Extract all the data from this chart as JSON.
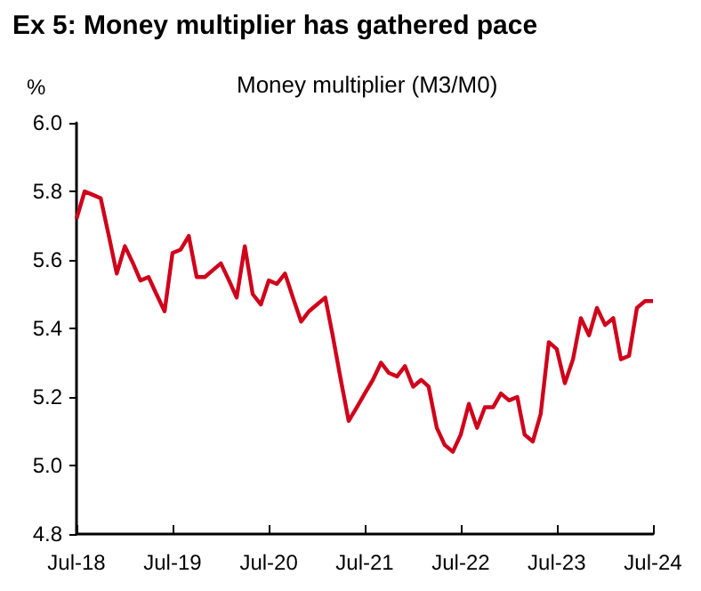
{
  "chart_data": {
    "type": "line",
    "title": "Ex 5: Money multiplier has gathered pace",
    "subtitle": "Money multiplier (M3/M0)",
    "ylabel": "%",
    "x": [
      "2018-07",
      "2018-08",
      "2018-09",
      "2018-10",
      "2018-11",
      "2018-12",
      "2019-01",
      "2019-02",
      "2019-03",
      "2019-04",
      "2019-05",
      "2019-06",
      "2019-07",
      "2019-08",
      "2019-09",
      "2019-10",
      "2019-11",
      "2019-12",
      "2020-01",
      "2020-02",
      "2020-03",
      "2020-04",
      "2020-05",
      "2020-06",
      "2020-07",
      "2020-08",
      "2020-09",
      "2020-10",
      "2020-11",
      "2020-12",
      "2021-01",
      "2021-02",
      "2021-03",
      "2021-04",
      "2021-05",
      "2021-06",
      "2021-07",
      "2021-08",
      "2021-09",
      "2021-10",
      "2021-11",
      "2021-12",
      "2022-01",
      "2022-02",
      "2022-03",
      "2022-04",
      "2022-05",
      "2022-06",
      "2022-07",
      "2022-08",
      "2022-09",
      "2022-10",
      "2022-11",
      "2022-12",
      "2023-01",
      "2023-02",
      "2023-03",
      "2023-04",
      "2023-05",
      "2023-06",
      "2023-07",
      "2023-08",
      "2023-09",
      "2023-10",
      "2023-11",
      "2023-12",
      "2024-01",
      "2024-02",
      "2024-03",
      "2024-04",
      "2024-05",
      "2024-06",
      "2024-07"
    ],
    "series": [
      {
        "color": "#d0021b",
        "values": [
          5.72,
          5.8,
          5.79,
          5.78,
          5.67,
          5.56,
          5.64,
          5.59,
          5.54,
          5.55,
          5.5,
          5.45,
          5.62,
          5.63,
          5.67,
          5.55,
          5.55,
          5.57,
          5.59,
          5.54,
          5.49,
          5.64,
          5.5,
          5.47,
          5.54,
          5.53,
          5.56,
          5.49,
          5.42,
          5.45,
          5.47,
          5.49,
          5.38,
          5.25,
          5.13,
          5.17,
          5.21,
          5.25,
          5.3,
          5.27,
          5.26,
          5.29,
          5.23,
          5.25,
          5.23,
          5.11,
          5.06,
          5.04,
          5.09,
          5.18,
          5.11,
          5.17,
          5.17,
          5.21,
          5.19,
          5.2,
          5.09,
          5.07,
          5.15,
          5.36,
          5.34,
          5.24,
          5.31,
          5.43,
          5.38,
          5.46,
          5.41,
          5.43,
          5.31,
          5.32,
          5.46,
          5.48,
          5.48
        ]
      }
    ],
    "xlim": [
      "2018-07",
      "2024-07"
    ],
    "xticks": [
      {
        "value": "2018-07",
        "label": "Jul-18"
      },
      {
        "value": "2019-07",
        "label": "Jul-19"
      },
      {
        "value": "2020-07",
        "label": "Jul-20"
      },
      {
        "value": "2021-07",
        "label": "Jul-21"
      },
      {
        "value": "2022-07",
        "label": "Jul-22"
      },
      {
        "value": "2023-07",
        "label": "Jul-23"
      },
      {
        "value": "2024-07",
        "label": "Jul-24"
      }
    ],
    "ylim": [
      4.8,
      6.0
    ],
    "yticks": [
      4.8,
      {
        "value": 5,
        "label": "5.0"
      },
      5.2,
      5.4,
      5.6,
      5.8,
      {
        "value": 6,
        "label": "6.0"
      }
    ],
    "grid": false,
    "marker": "none",
    "line_style": "solid"
  }
}
